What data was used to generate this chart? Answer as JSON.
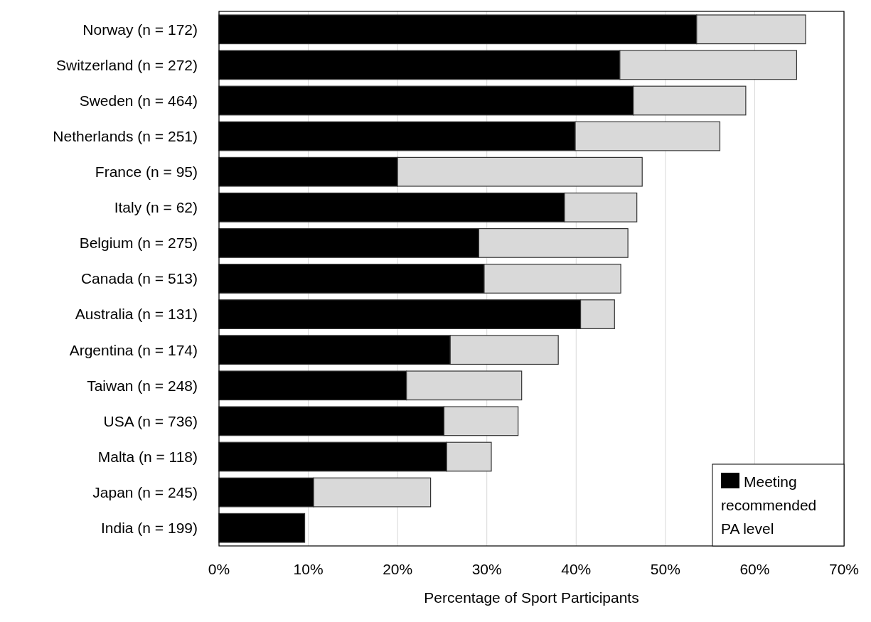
{
  "chart_data": {
    "type": "bar",
    "orientation": "horizontal",
    "stacked": true,
    "xlabel": "Percentage of Sport Participants",
    "categories": [
      "Norway (n = 172)",
      "Switzerland (n = 272)",
      "Sweden (n = 464)",
      "Netherlands (n = 251)",
      "France (n = 95)",
      "Italy (n = 62)",
      "Belgium (n = 275)",
      "Canada (n = 513)",
      "Australia (n = 131)",
      "Argentina (n = 174)",
      "Taiwan (n = 248)",
      "USA (n = 736)",
      "Malta (n = 118)",
      "Japan (n = 245)",
      "India (n = 199)"
    ],
    "series": [
      {
        "name": "Meeting recommended PA level",
        "color": "#000000",
        "values": [
          53.5,
          44.9,
          46.4,
          39.9,
          20.0,
          38.7,
          29.1,
          29.7,
          40.5,
          25.9,
          21.0,
          25.2,
          25.5,
          10.6,
          9.6
        ]
      },
      {
        "color": "#d9d9d9",
        "values": [
          12.2,
          19.8,
          12.6,
          16.2,
          27.4,
          8.1,
          16.7,
          15.3,
          3.8,
          12.1,
          12.9,
          8.3,
          5.0,
          13.1,
          null
        ]
      }
    ],
    "xlim": [
      0,
      70
    ],
    "xticks": [
      {
        "value": 0,
        "label": "0%"
      },
      {
        "value": 10,
        "label": "10%"
      },
      {
        "value": 20,
        "label": "20%"
      },
      {
        "value": 30,
        "label": "30%"
      },
      {
        "value": 40,
        "label": "40%"
      },
      {
        "value": 50,
        "label": "50%"
      },
      {
        "value": 60,
        "label": "60%"
      },
      {
        "value": 70,
        "label": "70%"
      }
    ],
    "grid": "x",
    "legend": "bottom right"
  }
}
